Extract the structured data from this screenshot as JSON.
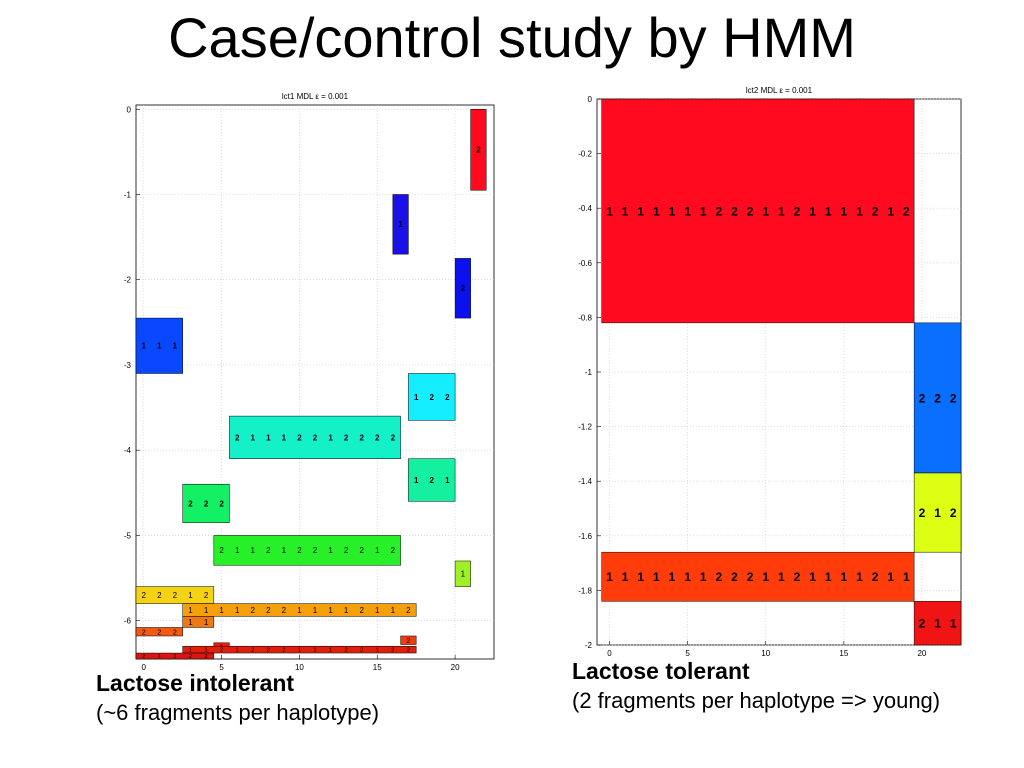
{
  "slide": {
    "title": "Case/control study by HMM"
  },
  "captions": {
    "left_title": "Lactose intolerant",
    "left_sub": "(~6 fragments per haplotype)",
    "right_title": "Lactose tolerant",
    "right_sub": "(2 fragments per haplotype => young)"
  },
  "chart_data": [
    {
      "type": "heatmap",
      "title": "lct1 MDL ε = 0.001",
      "xlim": [
        -0.5,
        22.5
      ],
      "ylim": [
        -6.45,
        0.05
      ],
      "xticks": [
        0,
        5,
        10,
        15,
        20
      ],
      "yticks": [
        0,
        -1,
        -2,
        -3,
        -4,
        -5,
        -6
      ],
      "grid": true,
      "fragments": [
        {
          "x0": 21,
          "x1": 22,
          "y0": -0.95,
          "y1": 0,
          "color": "#ff0a1e",
          "labels": [
            "2"
          ]
        },
        {
          "x0": 16,
          "x1": 17,
          "y0": -1.7,
          "y1": -1.0,
          "color": "#1a10e8",
          "labels": [
            "1"
          ]
        },
        {
          "x0": 20,
          "x1": 21,
          "y0": -2.45,
          "y1": -1.75,
          "color": "#0a10ee",
          "labels": [
            "2"
          ]
        },
        {
          "x0": -0.5,
          "x1": 2.5,
          "y0": -3.1,
          "y1": -2.45,
          "color": "#0a48ff",
          "labels": [
            "1",
            "1",
            "1"
          ]
        },
        {
          "x0": 17,
          "x1": 20,
          "y0": -3.65,
          "y1": -3.1,
          "color": "#14eeff",
          "labels": [
            "1",
            "2",
            "2"
          ]
        },
        {
          "x0": 5.5,
          "x1": 16.5,
          "y0": -4.1,
          "y1": -3.6,
          "color": "#14f0c8",
          "labels": [
            "2",
            "1",
            "1",
            "1",
            "2",
            "2",
            "1",
            "2",
            "2",
            "2",
            "2"
          ]
        },
        {
          "x0": 17,
          "x1": 20,
          "y0": -4.6,
          "y1": -4.1,
          "color": "#14f0a0",
          "labels": [
            "1",
            "2",
            "1"
          ]
        },
        {
          "x0": 2.5,
          "x1": 5.5,
          "y0": -4.85,
          "y1": -4.4,
          "color": "#14f064",
          "labels": [
            "2",
            "2",
            "2"
          ]
        },
        {
          "x0": 4.5,
          "x1": 16.5,
          "y0": -5.35,
          "y1": -5.0,
          "color": "#28f028",
          "labels": [
            "2",
            "1",
            "1",
            "2",
            "1",
            "2",
            "2",
            "1",
            "2",
            "2",
            "1",
            "2"
          ]
        },
        {
          "x0": 20,
          "x1": 21,
          "y0": -5.6,
          "y1": -5.3,
          "color": "#a0f028",
          "labels": [
            "1"
          ]
        },
        {
          "x0": -0.5,
          "x1": 4.5,
          "y0": -5.8,
          "y1": -5.6,
          "color": "#f5d214",
          "labels": [
            "2",
            "2",
            "2",
            "1",
            "2"
          ]
        },
        {
          "x0": 2.5,
          "x1": 17.5,
          "y0": -5.95,
          "y1": -5.8,
          "color": "#f5a00a",
          "labels": [
            "1",
            "1",
            "1",
            "1",
            "2",
            "2",
            "2",
            "1",
            "1",
            "1",
            "1",
            "2",
            "1",
            "1",
            "2"
          ]
        },
        {
          "x0": 2.5,
          "x1": 4.5,
          "y0": -6.08,
          "y1": -5.95,
          "color": "#f07814",
          "labels": [
            "1",
            "1"
          ]
        },
        {
          "x0": -0.5,
          "x1": 2.5,
          "y0": -6.18,
          "y1": -6.08,
          "color": "#f05a14",
          "labels": [
            "2",
            "2",
            "2"
          ]
        },
        {
          "x0": 16.5,
          "x1": 17.5,
          "y0": -6.28,
          "y1": -6.18,
          "color": "#f03c0a",
          "labels": [
            "2"
          ]
        },
        {
          "x0": 4.5,
          "x1": 5.5,
          "y0": -6.34,
          "y1": -6.26,
          "color": "#e81e0a",
          "labels": [
            "1"
          ]
        },
        {
          "x0": 2.5,
          "x1": 17.5,
          "y0": -6.38,
          "y1": -6.3,
          "color": "#e01e0a",
          "labels": [
            "1",
            "1",
            "2",
            "1",
            "2",
            "2",
            "2",
            "1",
            "1",
            "1",
            "2",
            "2",
            "1",
            "2",
            "2"
          ]
        },
        {
          "x0": -0.5,
          "x1": 4.5,
          "y0": -6.45,
          "y1": -6.38,
          "color": "#d81414",
          "labels": [
            "2",
            "1",
            "1",
            "2",
            "2"
          ]
        }
      ]
    },
    {
      "type": "heatmap",
      "title": "lct2 MDL ε = 0.001",
      "xlim": [
        -0.8,
        22.5
      ],
      "ylim": [
        -2.0,
        0.0
      ],
      "xticks": [
        0,
        5,
        10,
        15,
        20
      ],
      "yticks": [
        0,
        -0.2,
        -0.4,
        -0.6,
        -0.8,
        -1,
        -1.2,
        -1.4,
        -1.6,
        -1.8,
        -2
      ],
      "grid": true,
      "fragments": [
        {
          "x0": -0.5,
          "x1": 19.5,
          "y0": -0.82,
          "y1": 0.0,
          "color": "#ff0a1e",
          "labels": [
            "1",
            "1",
            "1",
            "1",
            "1",
            "1",
            "1",
            "2",
            "2",
            "2",
            "1",
            "1",
            "2",
            "1",
            "1",
            "1",
            "1",
            "2",
            "1",
            "2"
          ]
        },
        {
          "x0": 19.5,
          "x1": 22.5,
          "y0": -1.37,
          "y1": -0.82,
          "color": "#0a6eff",
          "labels": [
            "2",
            "2",
            "2"
          ]
        },
        {
          "x0": 19.5,
          "x1": 22.5,
          "y0": -1.66,
          "y1": -1.37,
          "color": "#dcff14",
          "labels": [
            "2",
            "1",
            "2"
          ]
        },
        {
          "x0": -0.5,
          "x1": 19.5,
          "y0": -1.84,
          "y1": -1.66,
          "color": "#ff3c0a",
          "labels": [
            "1",
            "1",
            "1",
            "1",
            "1",
            "1",
            "1",
            "2",
            "2",
            "2",
            "1",
            "1",
            "2",
            "1",
            "1",
            "1",
            "1",
            "2",
            "1",
            "1"
          ]
        },
        {
          "x0": 19.5,
          "x1": 22.5,
          "y0": -2.0,
          "y1": -1.84,
          "color": "#f01414",
          "labels": [
            "2",
            "1",
            "1"
          ]
        }
      ]
    }
  ]
}
